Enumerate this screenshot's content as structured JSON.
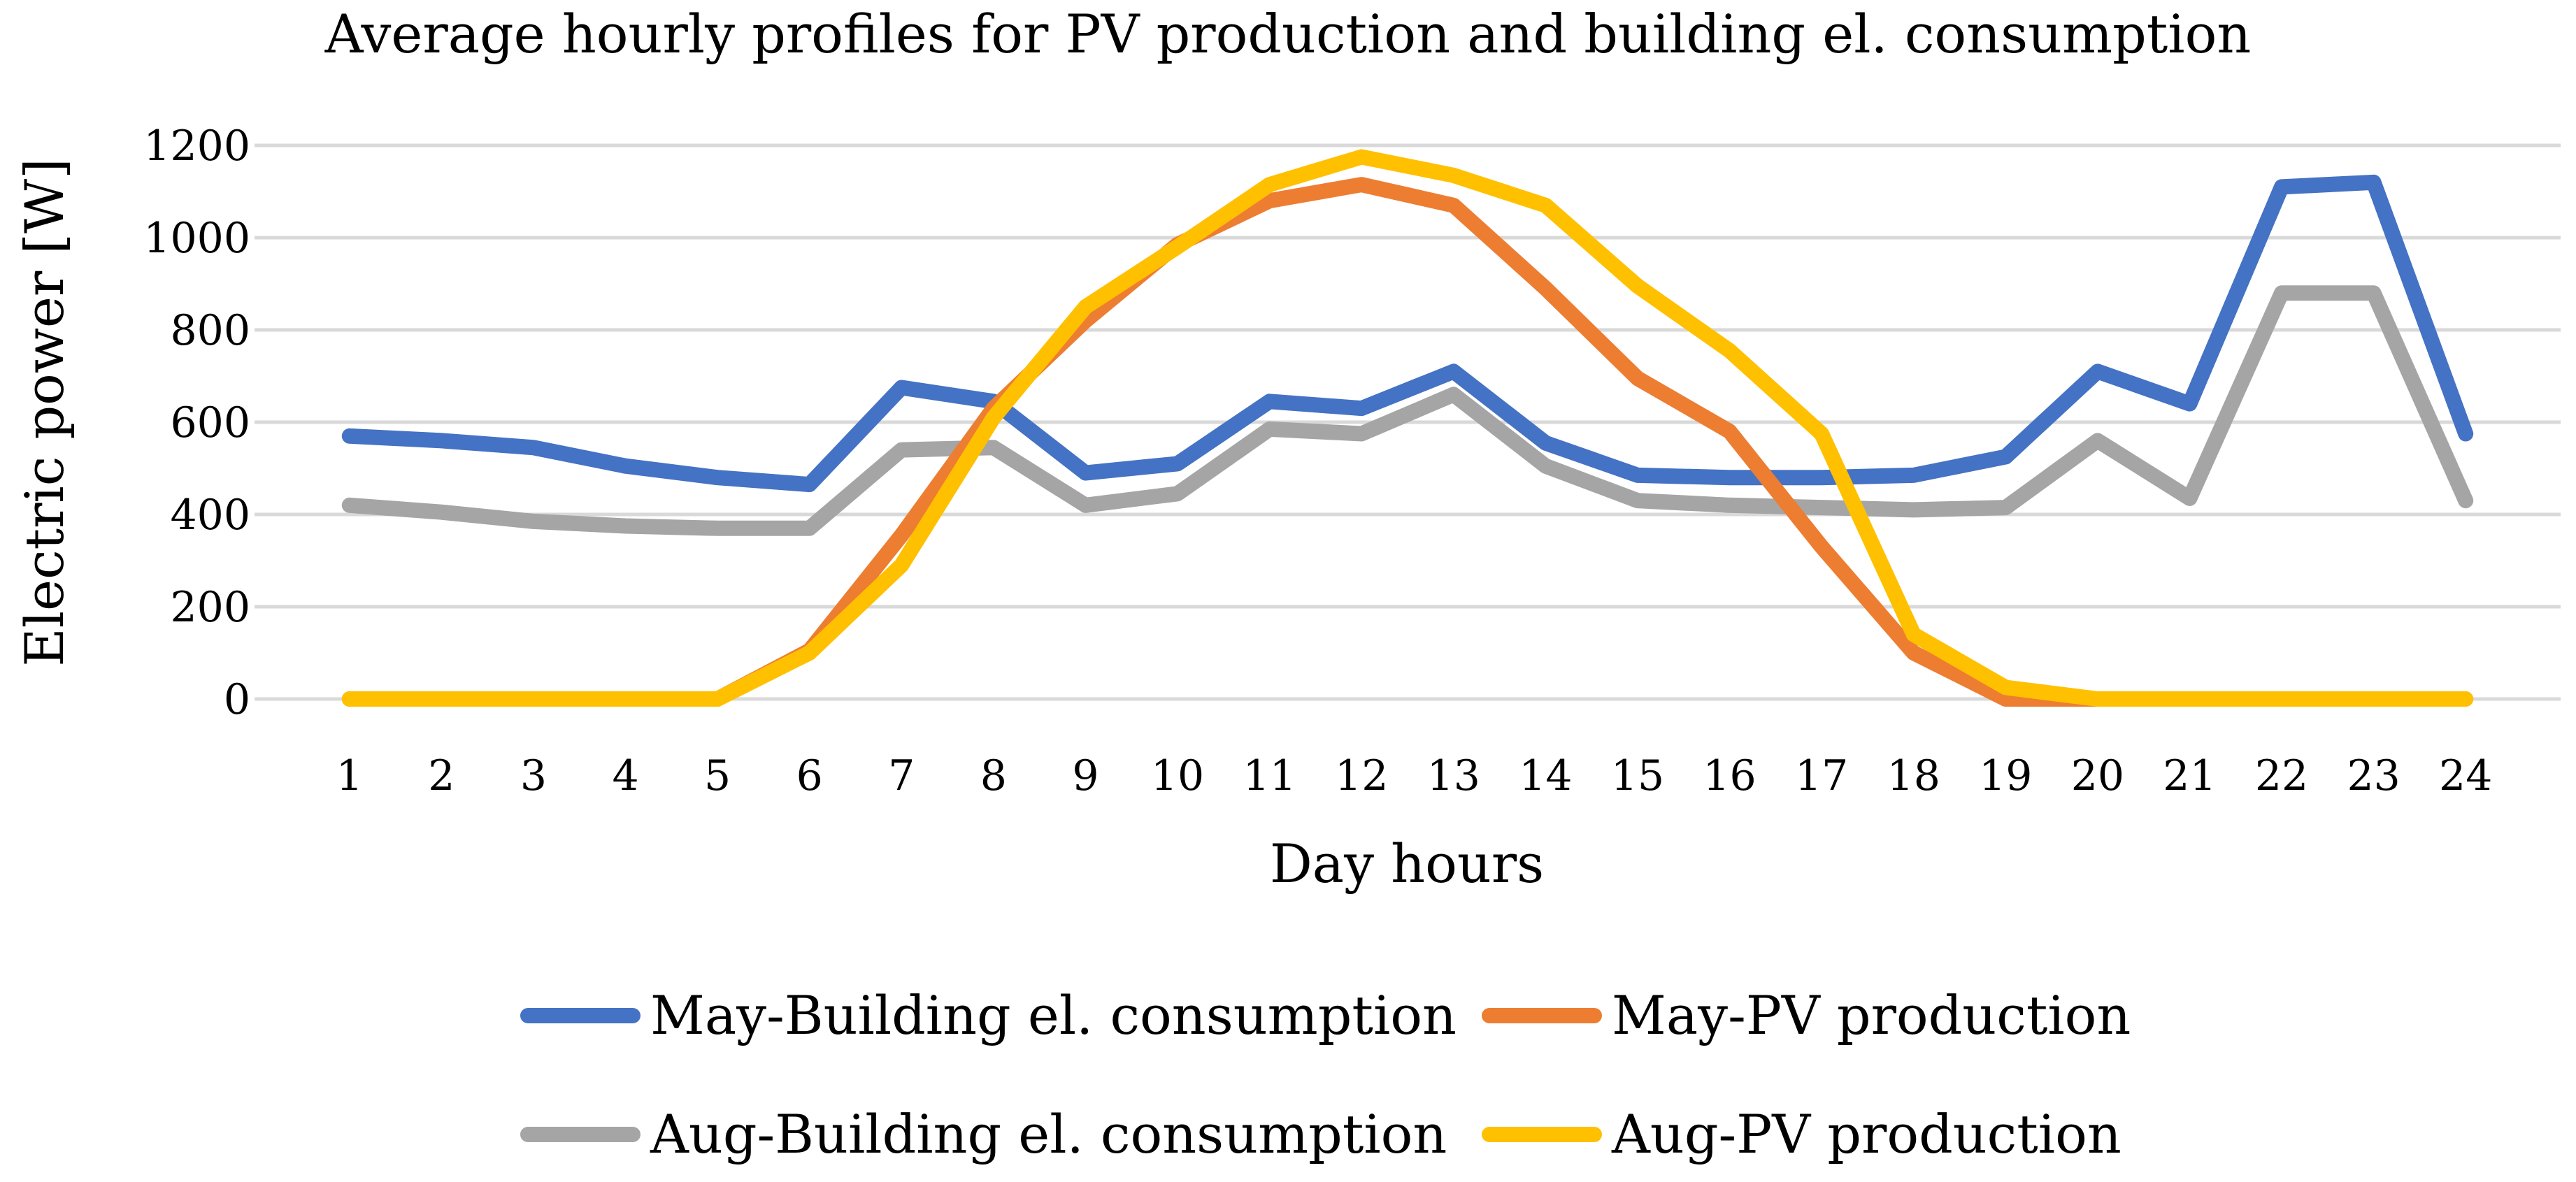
{
  "chart_data": {
    "type": "line",
    "title": "Average hourly profiles for PV production and building el. consumption",
    "xlabel": "Day hours",
    "ylabel": "Electric power [W]",
    "ylim": [
      0,
      1200
    ],
    "yticks": [
      0,
      200,
      400,
      600,
      800,
      1000,
      1200
    ],
    "ytick_labels": [
      "0",
      "200",
      "400",
      "600",
      "800",
      "1000",
      "1200"
    ],
    "grid": true,
    "legend_position": "bottom",
    "categories": [
      "1",
      "2",
      "3",
      "4",
      "5",
      "6",
      "7",
      "8",
      "9",
      "10",
      "11",
      "12",
      "13",
      "14",
      "15",
      "16",
      "17",
      "18",
      "19",
      "20",
      "21",
      "22",
      "23",
      "24"
    ],
    "series": [
      {
        "name": "May-Building el. consumption",
        "color": "#4472c4",
        "values": [
          570,
          560,
          545,
          505,
          480,
          465,
          675,
          645,
          490,
          510,
          645,
          630,
          710,
          555,
          485,
          480,
          480,
          485,
          525,
          710,
          640,
          1110,
          1120,
          575
        ]
      },
      {
        "name": "May-PV production",
        "color": "#ed7d31",
        "values": [
          0,
          0,
          0,
          0,
          0,
          105,
          355,
          630,
          820,
          985,
          1080,
          1115,
          1070,
          890,
          695,
          580,
          330,
          100,
          0,
          0,
          0,
          0,
          0,
          0
        ]
      },
      {
        "name": "Aug-Building el. consumption",
        "color": "#a5a5a5",
        "values": [
          420,
          405,
          385,
          375,
          370,
          370,
          540,
          545,
          420,
          445,
          585,
          575,
          660,
          505,
          430,
          420,
          415,
          410,
          415,
          560,
          435,
          880,
          880,
          430
        ]
      },
      {
        "name": "Aug-PV production",
        "color": "#ffc000",
        "values": [
          0,
          0,
          0,
          0,
          0,
          100,
          290,
          610,
          850,
          980,
          1115,
          1175,
          1135,
          1070,
          895,
          755,
          575,
          140,
          25,
          0,
          0,
          0,
          0,
          0
        ]
      }
    ]
  }
}
